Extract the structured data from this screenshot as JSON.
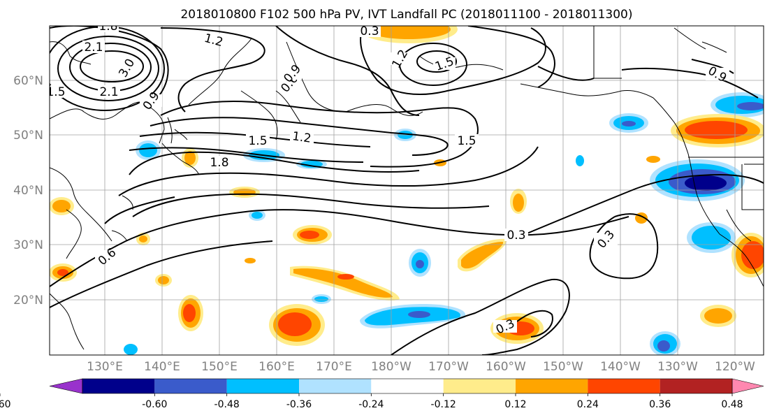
{
  "title": "2018010800 F102 500 hPa PV, IVT Landfall PC (2018011100 - 2018011300)",
  "lat_labels": [
    "60°N",
    "50°N",
    "40°N",
    "30°N",
    "20°N"
  ],
  "lon_labels": [
    "130°E",
    "140°E",
    "150°E",
    "160°E",
    "170°E",
    "180°W",
    "170°W",
    "160°W",
    "150°W",
    "140°W",
    "130°W",
    "120°W"
  ],
  "contour_labels": [
    "1.8",
    "1.2",
    "2.1",
    "3.0",
    "2.1",
    "1.5",
    "0.9",
    "0.3",
    "1.2",
    "1.5",
    "0.6",
    "1.5",
    "1.2",
    "1.8",
    "1.5",
    "0.3",
    "0.3",
    "0.6",
    "0.3",
    "0.9",
    "0.9"
  ],
  "colorbar": {
    "colors": [
      "#9932CC",
      "#00008B",
      "#3A5BCB",
      "#00BFFF",
      "#B0E2FF",
      "#FFFFFF",
      "#FFEC8B",
      "#FFA500",
      "#FF4500",
      "#B22222",
      "#FF88B0"
    ],
    "tick_labels": [
      "-0.60",
      "-0.48",
      "-0.36",
      "-0.24",
      "-0.12",
      "0.12",
      "0.24",
      "0.36",
      "0.48",
      "0.60"
    ]
  },
  "shading_legend": {
    "positive": [
      "#FFEC8B",
      "#FFA500",
      "#FF4500",
      "#B22222"
    ],
    "negative": [
      "#B0E2FF",
      "#00BFFF",
      "#3A5BCB",
      "#00008B"
    ]
  }
}
